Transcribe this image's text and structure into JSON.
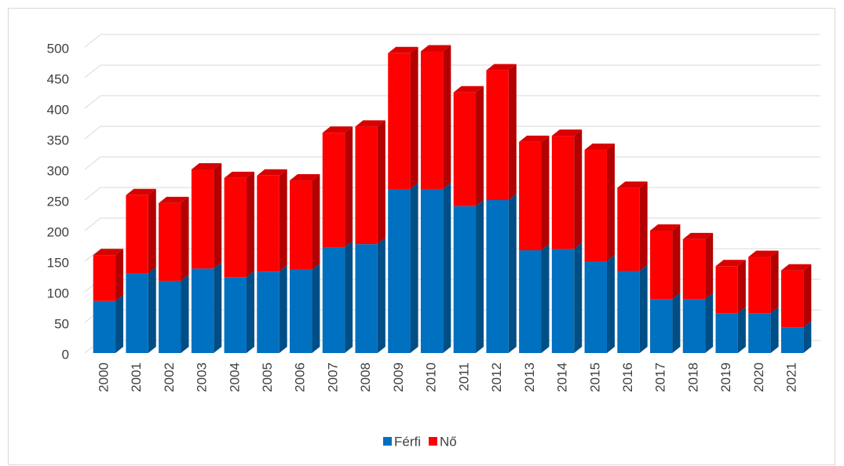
{
  "chart_data": {
    "type": "stacked_bar",
    "categories": [
      "2000",
      "2001",
      "2002",
      "2003",
      "2004",
      "2005",
      "2006",
      "2007",
      "2008",
      "2009",
      "2010",
      "2011",
      "2012",
      "2013",
      "2014",
      "2015",
      "2016",
      "2017",
      "2018",
      "2019",
      "2020",
      "2021"
    ],
    "series": [
      {
        "name": "Férfi",
        "color": "#0070c0",
        "values": [
          85,
          130,
          118,
          138,
          124,
          133,
          136,
          173,
          178,
          268,
          268,
          240,
          250,
          168,
          170,
          150,
          134,
          88,
          88,
          65,
          65,
          42
        ]
      },
      {
        "name": "Nő",
        "color": "#ff0000",
        "values": [
          75,
          128,
          127,
          162,
          162,
          157,
          146,
          187,
          192,
          222,
          225,
          186,
          212,
          177,
          185,
          182,
          136,
          112,
          98,
          77,
          92,
          93
        ]
      }
    ],
    "ylim": [
      0,
      500
    ],
    "yticks": [
      0,
      50,
      100,
      150,
      200,
      250,
      300,
      350,
      400,
      450,
      500
    ],
    "grid": true,
    "legend": "bottom"
  }
}
